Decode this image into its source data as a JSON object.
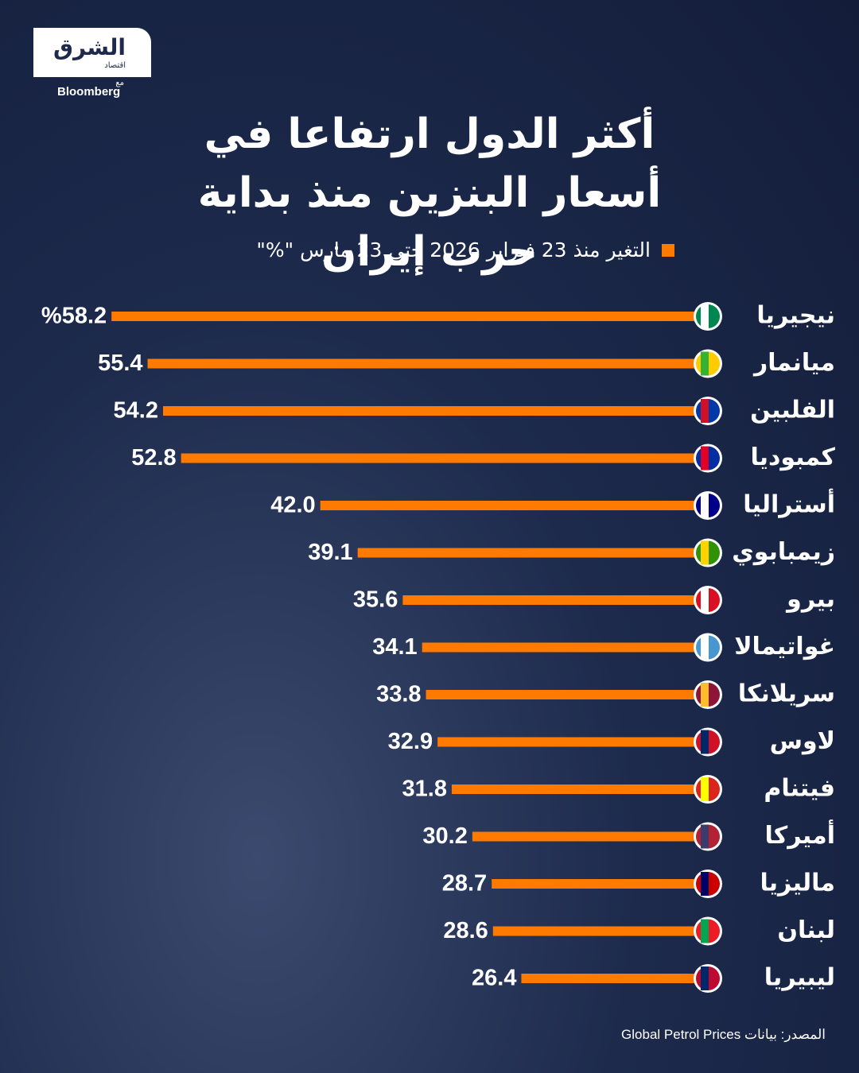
{
  "logo": {
    "brand": "الشرق",
    "sub": "اقتصاد",
    "with": "مع",
    "partner": "Bloomberg"
  },
  "chart_data": {
    "type": "bar",
    "orientation": "horizontal",
    "title": "أكثر الدول ارتفاعا في أسعار البنزين منذ بداية حرب إيران",
    "categories": [
      "نيجيريا",
      "ميانمار",
      "الفلبين",
      "كمبوديا",
      "أستراليا",
      "زيمبابوي",
      "بيرو",
      "غواتيمالا",
      "سريلانكا",
      "لاوس",
      "فيتنام",
      "أميركا",
      "ماليزيا",
      "لبنان",
      "ليبيريا"
    ],
    "series": [
      {
        "name": "التغير منذ 23 فبراير 2026 حتى 23 مارس \"%\"",
        "color": "#ff7a00",
        "values": [
          58.2,
          55.4,
          54.2,
          52.8,
          42.0,
          39.1,
          35.6,
          34.1,
          33.8,
          32.9,
          31.8,
          30.2,
          28.7,
          28.6,
          26.4
        ],
        "value_labels": [
          "%58.2",
          "55.4",
          "54.2",
          "52.8",
          "42.0",
          "39.1",
          "35.6",
          "34.1",
          "33.8",
          "32.9",
          "31.8",
          "30.2",
          "28.7",
          "28.6",
          "26.4"
        ]
      }
    ],
    "xlim": [
      11,
      60
    ],
    "source": "المصدر: بيانات Global Petrol Prices"
  }
}
